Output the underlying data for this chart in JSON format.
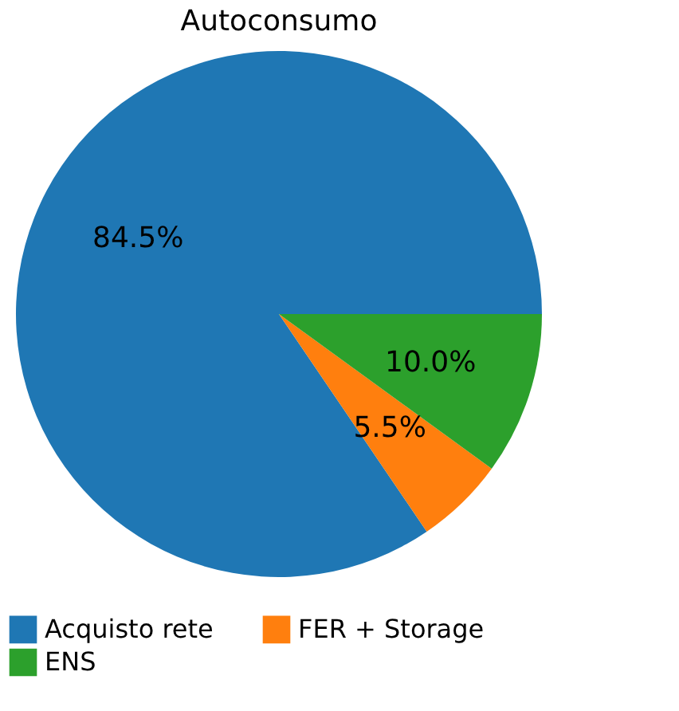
{
  "chart_data": {
    "type": "pie",
    "title": "Autoconsumo",
    "categories": [
      "Acquisto rete",
      "FER + Storage",
      "ENS"
    ],
    "values": [
      84.5,
      5.5,
      10.0
    ],
    "colors": [
      "#1f77b4",
      "#ff7f0e",
      "#2ca02c"
    ],
    "value_labels": [
      "84.5%",
      "5.5%",
      "10.0%"
    ],
    "legend": "bottom"
  }
}
